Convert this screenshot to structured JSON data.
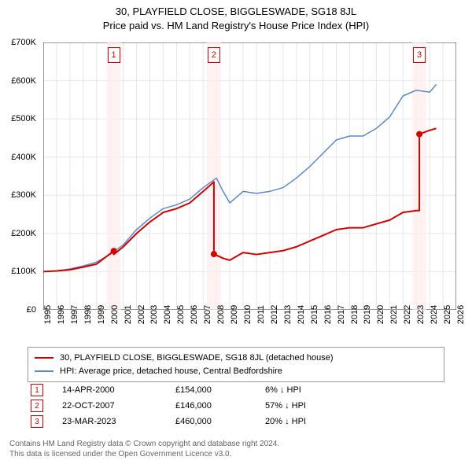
{
  "title": {
    "line1": "30, PLAYFIELD CLOSE, BIGGLESWADE, SG18 8JL",
    "line2": "Price paid vs. HM Land Registry's House Price Index (HPI)"
  },
  "chart": {
    "type": "line",
    "background_color": "#ffffff",
    "grid_color": "#e6e6e6",
    "axis_color": "#333333",
    "ylim": [
      0,
      700000
    ],
    "ytick_step": 100000,
    "ylabels": [
      "£0",
      "£100K",
      "£200K",
      "£300K",
      "£400K",
      "£500K",
      "£600K",
      "£700K"
    ],
    "xlim": [
      1995,
      2026
    ],
    "xlabels": [
      "1995",
      "1996",
      "1997",
      "1998",
      "1999",
      "2000",
      "2001",
      "2002",
      "2003",
      "2004",
      "2005",
      "2006",
      "2007",
      "2008",
      "2009",
      "2010",
      "2011",
      "2012",
      "2013",
      "2014",
      "2015",
      "2016",
      "2017",
      "2018",
      "2019",
      "2020",
      "2021",
      "2022",
      "2023",
      "2024",
      "2025",
      "2026"
    ],
    "series": [
      {
        "name": "address_price",
        "color": "#d40000",
        "line_width": 2,
        "points": [
          [
            1995.0,
            100000
          ],
          [
            1996.0,
            102000
          ],
          [
            1997.0,
            105000
          ],
          [
            1998.0,
            112000
          ],
          [
            1999.0,
            120000
          ],
          [
            2000.29,
            154000
          ],
          [
            2000.29,
            145000
          ],
          [
            2001.0,
            165000
          ],
          [
            2002.0,
            200000
          ],
          [
            2003.0,
            230000
          ],
          [
            2004.0,
            255000
          ],
          [
            2005.0,
            265000
          ],
          [
            2006.0,
            280000
          ],
          [
            2007.0,
            310000
          ],
          [
            2007.81,
            335000
          ],
          [
            2007.81,
            146000
          ],
          [
            2008.5,
            135000
          ],
          [
            2009.0,
            130000
          ],
          [
            2010.0,
            150000
          ],
          [
            2011.0,
            145000
          ],
          [
            2012.0,
            150000
          ],
          [
            2013.0,
            155000
          ],
          [
            2014.0,
            165000
          ],
          [
            2015.0,
            180000
          ],
          [
            2016.0,
            195000
          ],
          [
            2017.0,
            210000
          ],
          [
            2018.0,
            215000
          ],
          [
            2019.0,
            215000
          ],
          [
            2020.0,
            225000
          ],
          [
            2021.0,
            235000
          ],
          [
            2022.0,
            255000
          ],
          [
            2023.0,
            260000
          ],
          [
            2023.23,
            260000
          ],
          [
            2023.23,
            460000
          ],
          [
            2024.0,
            470000
          ],
          [
            2024.5,
            475000
          ]
        ]
      },
      {
        "name": "hpi",
        "color": "#5b89c7",
        "line_width": 1.5,
        "points": [
          [
            1995.0,
            100000
          ],
          [
            1996.0,
            102000
          ],
          [
            1997.0,
            107000
          ],
          [
            1998.0,
            115000
          ],
          [
            1999.0,
            125000
          ],
          [
            2000.0,
            145000
          ],
          [
            2001.0,
            170000
          ],
          [
            2002.0,
            210000
          ],
          [
            2003.0,
            240000
          ],
          [
            2004.0,
            265000
          ],
          [
            2005.0,
            275000
          ],
          [
            2006.0,
            290000
          ],
          [
            2007.0,
            320000
          ],
          [
            2008.0,
            345000
          ],
          [
            2008.5,
            310000
          ],
          [
            2009.0,
            280000
          ],
          [
            2010.0,
            310000
          ],
          [
            2011.0,
            305000
          ],
          [
            2012.0,
            310000
          ],
          [
            2013.0,
            320000
          ],
          [
            2014.0,
            345000
          ],
          [
            2015.0,
            375000
          ],
          [
            2016.0,
            410000
          ],
          [
            2017.0,
            445000
          ],
          [
            2018.0,
            455000
          ],
          [
            2019.0,
            455000
          ],
          [
            2020.0,
            475000
          ],
          [
            2021.0,
            505000
          ],
          [
            2022.0,
            560000
          ],
          [
            2023.0,
            575000
          ],
          [
            2024.0,
            570000
          ],
          [
            2024.5,
            590000
          ]
        ]
      }
    ],
    "sale_markers": [
      {
        "num": "1",
        "x": 2000.29,
        "color": "#d40000"
      },
      {
        "num": "2",
        "x": 2007.81,
        "color": "#d40000"
      },
      {
        "num": "3",
        "x": 2023.23,
        "color": "#d40000"
      }
    ],
    "sale_points": [
      {
        "x": 2000.29,
        "y": 154000,
        "color": "#d40000"
      },
      {
        "x": 2007.81,
        "y": 146000,
        "color": "#d40000"
      },
      {
        "x": 2023.23,
        "y": 460000,
        "color": "#d40000"
      }
    ]
  },
  "legend": {
    "items": [
      {
        "color": "#d40000",
        "width": 2,
        "label": "30, PLAYFIELD CLOSE, BIGGLESWADE, SG18 8JL (detached house)"
      },
      {
        "color": "#5b89c7",
        "width": 1.5,
        "label": "HPI: Average price, detached house, Central Bedfordshire"
      }
    ]
  },
  "sales": [
    {
      "num": "1",
      "color": "#d40000",
      "date": "14-APR-2000",
      "price": "£154,000",
      "hpi": "6% ↓ HPI"
    },
    {
      "num": "2",
      "color": "#d40000",
      "date": "22-OCT-2007",
      "price": "£146,000",
      "hpi": "57% ↓ HPI"
    },
    {
      "num": "3",
      "color": "#d40000",
      "date": "23-MAR-2023",
      "price": "£460,000",
      "hpi": "20% ↓ HPI"
    }
  ],
  "footer": {
    "line1": "Contains HM Land Registry data © Crown copyright and database right 2024.",
    "line2": "This data is licensed under the Open Government Licence v3.0."
  }
}
